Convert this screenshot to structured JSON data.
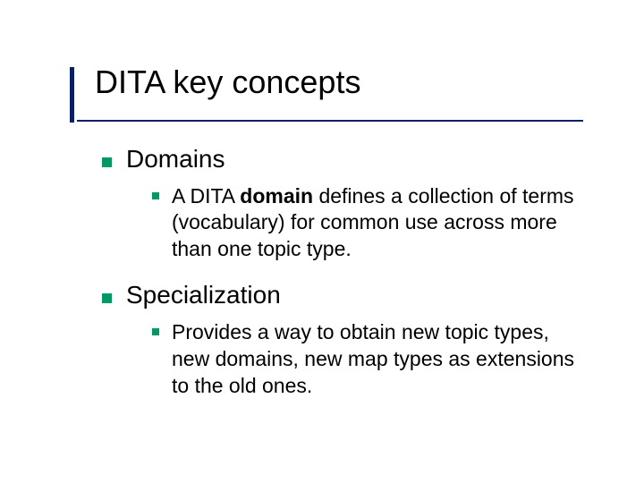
{
  "slide": {
    "title": "DITA key concepts",
    "accent_color": "#0b1f66",
    "bullet_color": "#009966",
    "background_color": "#ffffff",
    "text_color": "#000000",
    "title_fontsize": 36,
    "level1_fontsize": 28,
    "level2_fontsize": 23,
    "bullets": [
      {
        "label": "Domains",
        "children": [
          {
            "pre": "A DITA ",
            "bold": "domain",
            "post": " defines a collection of terms (vocabulary) for common use across more than one topic type."
          }
        ]
      },
      {
        "label": "Specialization",
        "children": [
          {
            "pre": "",
            "bold": "",
            "post": "Provides a way to obtain new topic types, new domains, new map types as extensions to the old ones."
          }
        ]
      }
    ]
  }
}
